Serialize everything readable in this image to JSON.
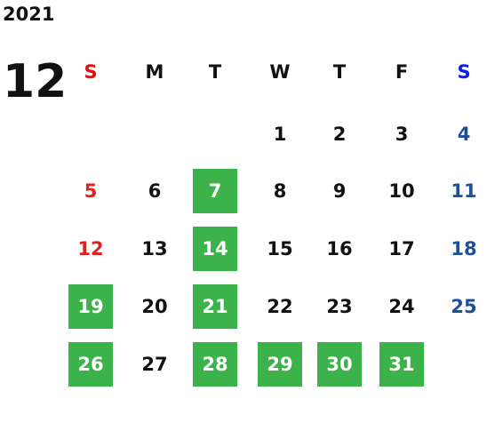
{
  "year": "2021",
  "month": "12",
  "weekdays": [
    "S",
    "M",
    "T",
    "W",
    "T",
    "F",
    "S"
  ],
  "weeks": [
    [
      null,
      null,
      null,
      {
        "day": "1",
        "highlight": false
      },
      {
        "day": "2",
        "highlight": false
      },
      {
        "day": "3",
        "highlight": false
      },
      {
        "day": "4",
        "highlight": false
      }
    ],
    [
      {
        "day": "5",
        "highlight": false
      },
      {
        "day": "6",
        "highlight": false
      },
      {
        "day": "7",
        "highlight": true
      },
      {
        "day": "8",
        "highlight": false
      },
      {
        "day": "9",
        "highlight": false
      },
      {
        "day": "10",
        "highlight": false
      },
      {
        "day": "11",
        "highlight": false
      }
    ],
    [
      {
        "day": "12",
        "highlight": false
      },
      {
        "day": "13",
        "highlight": false
      },
      {
        "day": "14",
        "highlight": true
      },
      {
        "day": "15",
        "highlight": false
      },
      {
        "day": "16",
        "highlight": false
      },
      {
        "day": "17",
        "highlight": false
      },
      {
        "day": "18",
        "highlight": false
      }
    ],
    [
      {
        "day": "19",
        "highlight": true
      },
      {
        "day": "20",
        "highlight": false
      },
      {
        "day": "21",
        "highlight": true
      },
      {
        "day": "22",
        "highlight": false
      },
      {
        "day": "23",
        "highlight": false
      },
      {
        "day": "24",
        "highlight": false
      },
      {
        "day": "25",
        "highlight": false
      }
    ],
    [
      {
        "day": "26",
        "highlight": true
      },
      {
        "day": "27",
        "highlight": false
      },
      {
        "day": "28",
        "highlight": true
      },
      {
        "day": "29",
        "highlight": true
      },
      {
        "day": "30",
        "highlight": true
      },
      {
        "day": "31",
        "highlight": true
      },
      null
    ]
  ]
}
